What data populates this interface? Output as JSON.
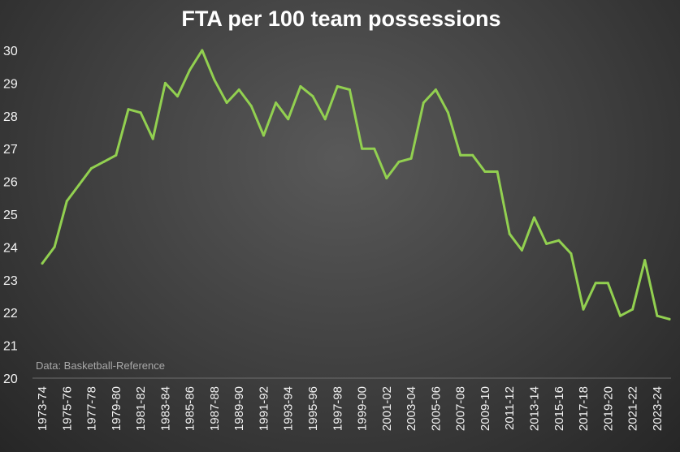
{
  "chart_data": {
    "type": "line",
    "title": "FTA per 100 team possessions",
    "source_note": "Data: Basketball-Reference",
    "xlabel": "",
    "ylabel": "",
    "ylim": [
      20,
      30
    ],
    "yticks": [
      20,
      21,
      22,
      23,
      24,
      25,
      26,
      27,
      28,
      29,
      30
    ],
    "grid": false,
    "legend": "none",
    "line_color": "#92d050",
    "categories": [
      "1973-74",
      "1974-75",
      "1975-76",
      "1976-77",
      "1977-78",
      "1978-79",
      "1979-80",
      "1980-81",
      "1981-82",
      "1982-83",
      "1983-84",
      "1984-85",
      "1985-86",
      "1986-87",
      "1987-88",
      "1988-89",
      "1989-90",
      "1990-91",
      "1991-92",
      "1992-93",
      "1993-94",
      "1994-95",
      "1995-96",
      "1996-97",
      "1997-98",
      "1998-99",
      "1999-00",
      "2000-01",
      "2001-02",
      "2002-03",
      "2003-04",
      "2004-05",
      "2005-06",
      "2006-07",
      "2007-08",
      "2008-09",
      "2009-10",
      "2010-11",
      "2011-12",
      "2012-13",
      "2013-14",
      "2014-15",
      "2015-16",
      "2016-17",
      "2017-18",
      "2018-19",
      "2019-20",
      "2020-21",
      "2021-22",
      "2022-23",
      "2023-24",
      "2024-25"
    ],
    "series": [
      {
        "values": [
          23.5,
          24.0,
          25.4,
          25.9,
          26.4,
          26.6,
          26.8,
          28.2,
          28.1,
          27.3,
          29.0,
          28.6,
          29.4,
          30.0,
          29.1,
          28.4,
          28.8,
          28.3,
          27.4,
          28.4,
          27.9,
          28.9,
          28.6,
          27.9,
          28.9,
          28.8,
          27.0,
          27.0,
          26.1,
          26.6,
          26.7,
          28.4,
          28.8,
          28.1,
          26.8,
          26.8,
          26.3,
          26.3,
          24.4,
          23.9,
          24.9,
          24.1,
          24.2,
          23.8,
          22.1,
          22.9,
          22.9,
          21.9,
          22.1,
          23.6,
          21.9,
          21.8
        ]
      }
    ]
  }
}
